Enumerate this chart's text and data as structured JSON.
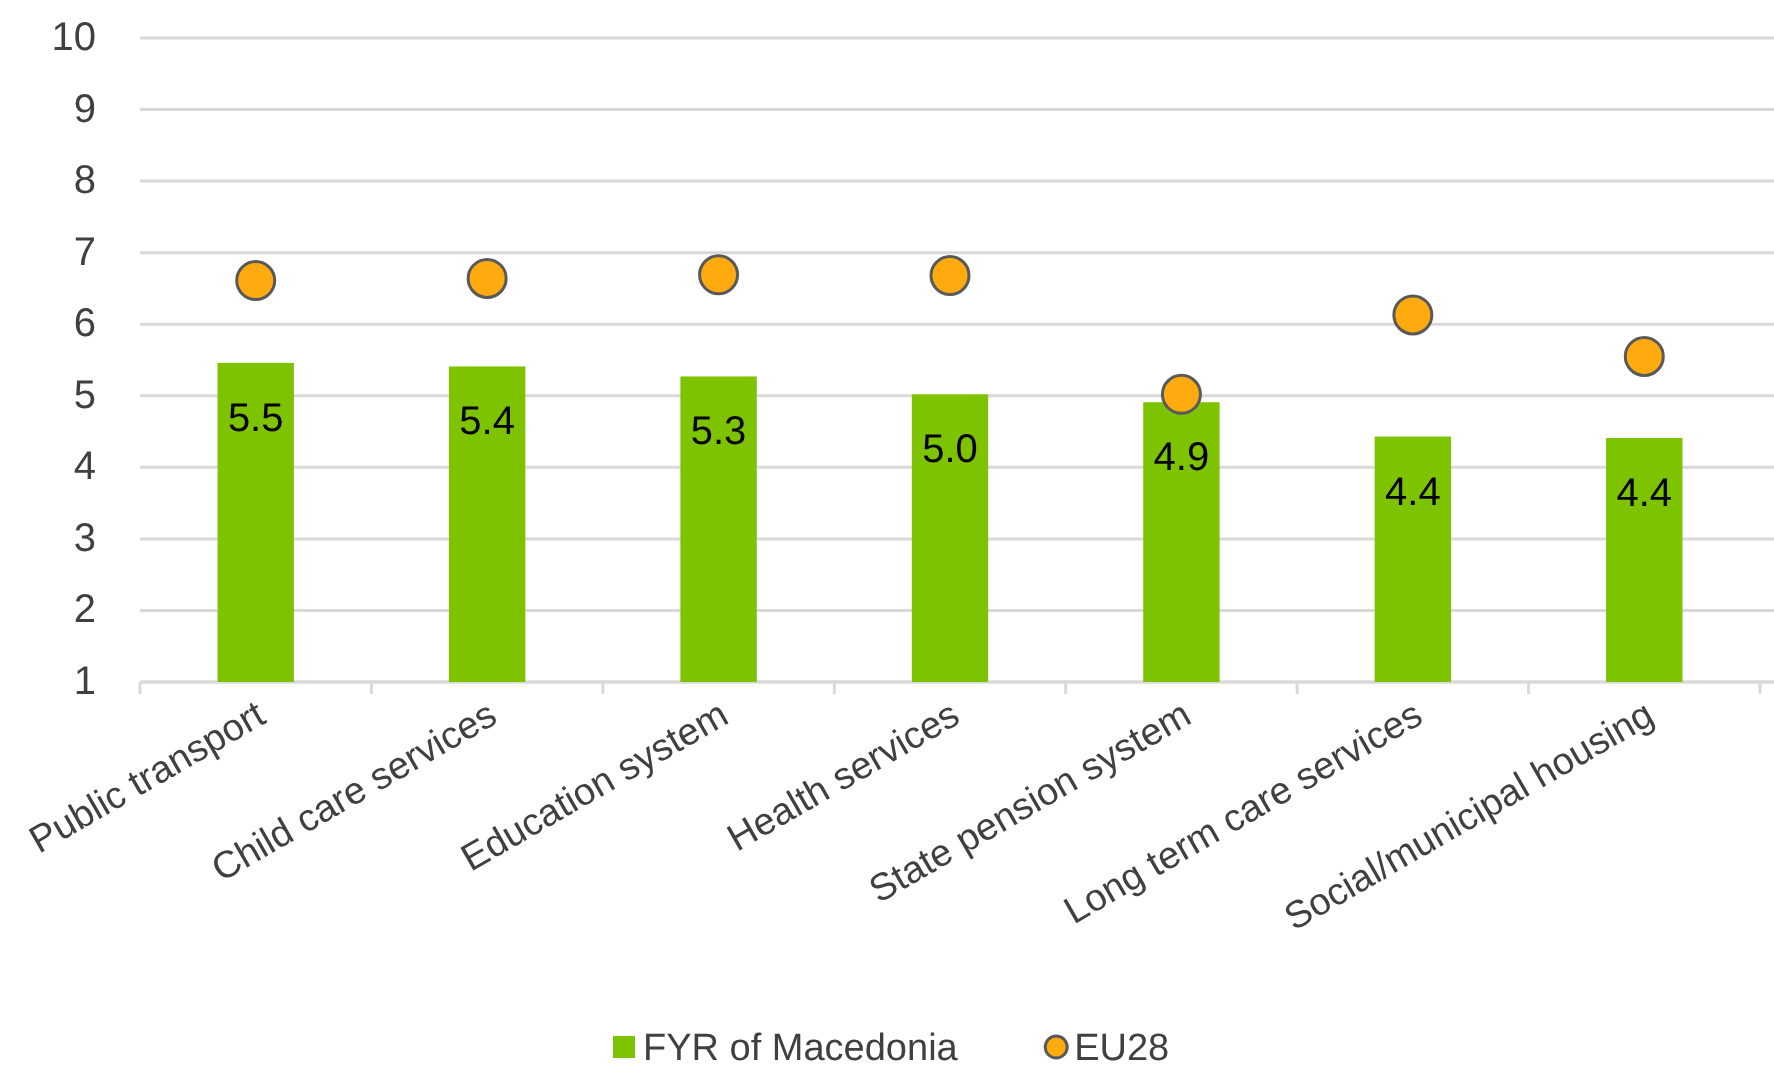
{
  "chart_data": {
    "type": "bar",
    "categories": [
      "Public transport",
      "Child care services",
      "Education system",
      "Health services",
      "State pension system",
      "Long term care services",
      "Social/municipal housing"
    ],
    "series": [
      {
        "name": "FYR of Macedonia",
        "color": "#7dc300",
        "values": [
          5.46,
          5.41,
          5.27,
          5.02,
          4.91,
          4.43,
          4.41
        ],
        "value_labels": [
          "5.5",
          "5.4",
          "5.3",
          "5.0",
          "4.9",
          "4.4",
          "4.4"
        ]
      },
      {
        "name": "EU28",
        "type": "scatter",
        "color": "#ffab0f",
        "marker": "circle",
        "values": [
          6.61,
          6.64,
          6.69,
          6.68,
          5.02,
          6.13,
          5.55
        ]
      }
    ],
    "ylim": [
      1,
      10
    ],
    "yticks": [
      1,
      2,
      3,
      4,
      5,
      6,
      7,
      8,
      9,
      10
    ],
    "grid": "y",
    "legend": "bottom"
  }
}
